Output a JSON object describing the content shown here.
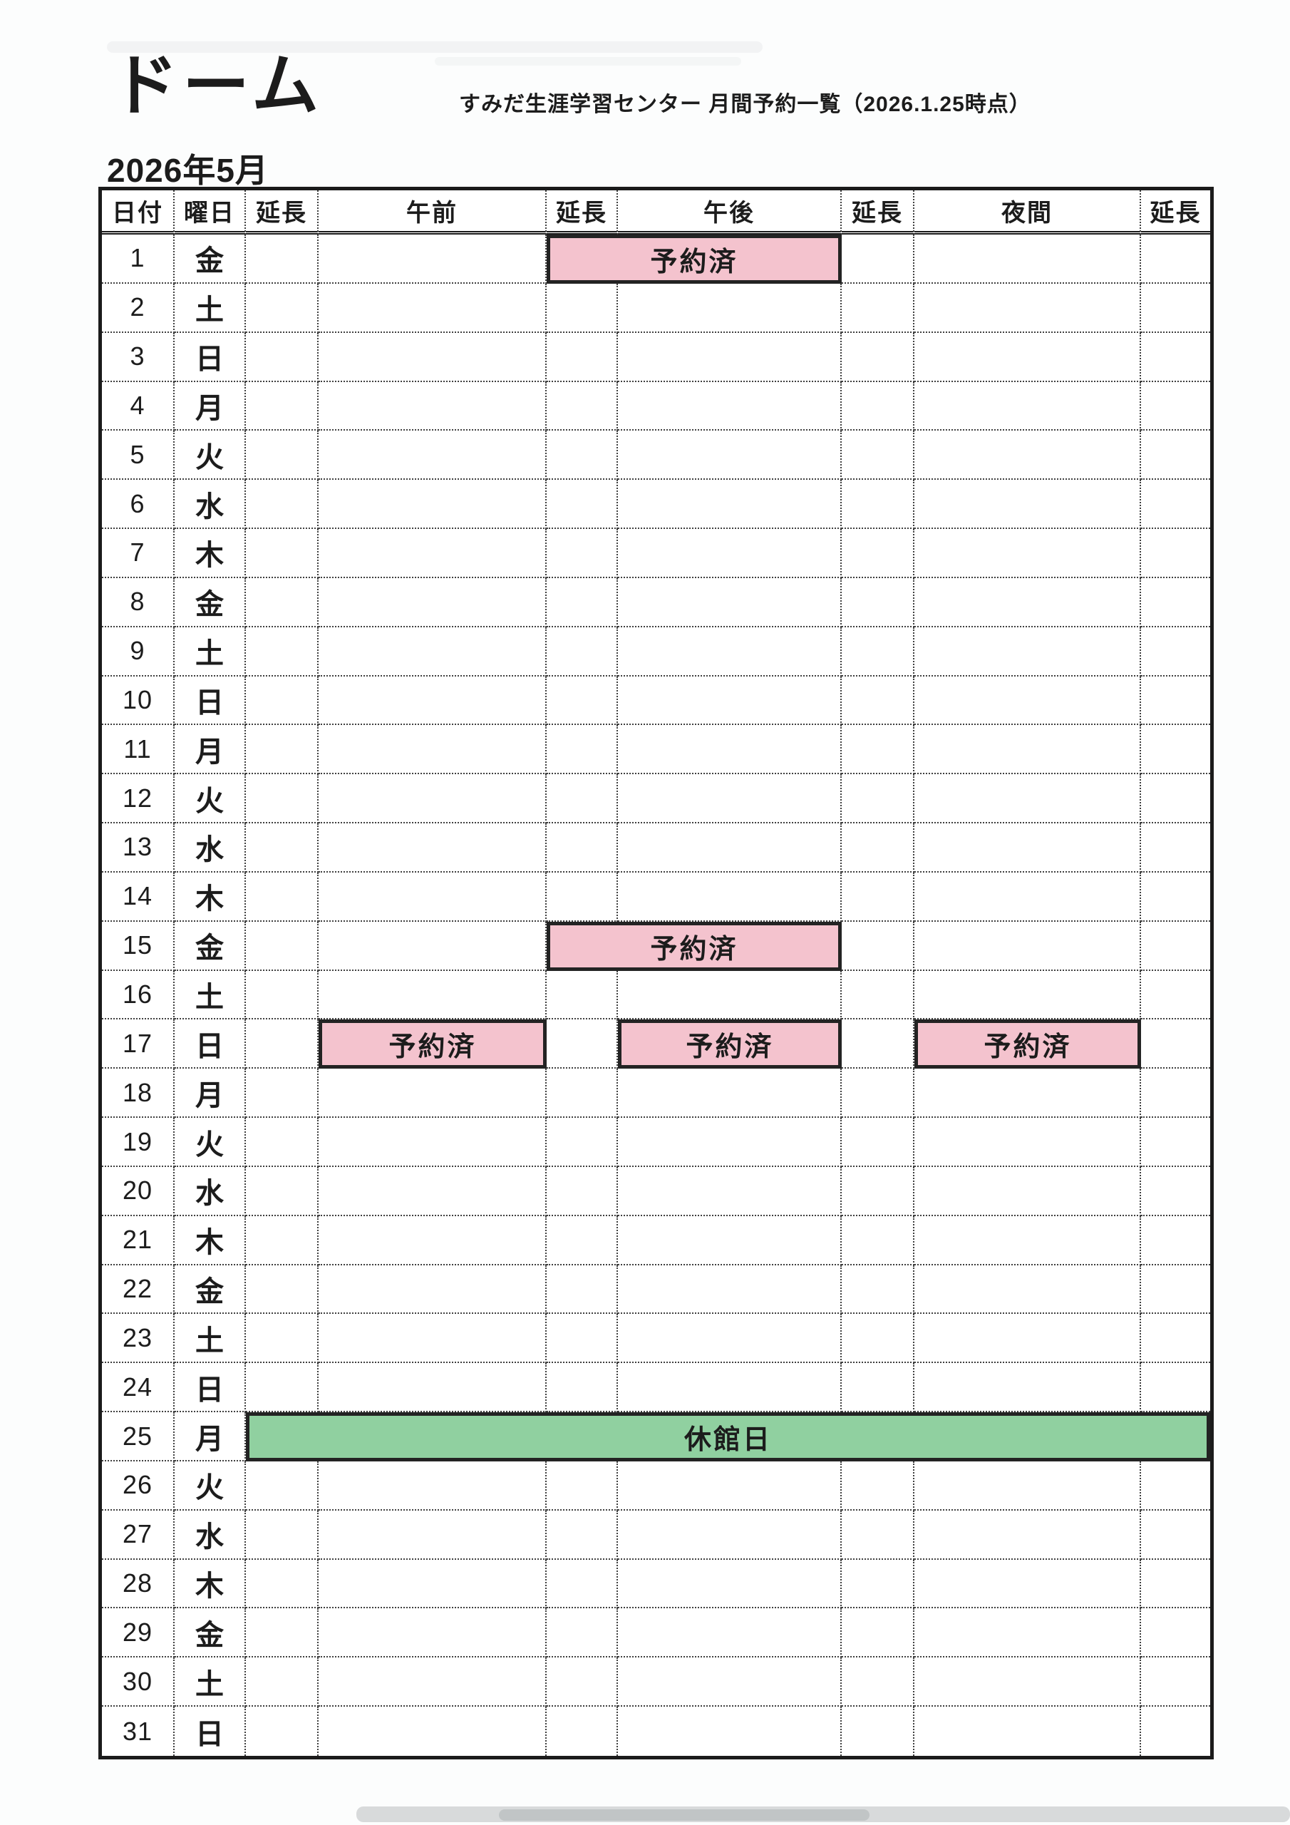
{
  "page": {
    "facility": "ドーム",
    "report_title": "すみだ生涯学習センター 月間予約一覧（2026.1.25時点）",
    "month": "2026年5月"
  },
  "table": {
    "headers": [
      "日付",
      "曜日",
      "延長",
      "午前",
      "延長",
      "午後",
      "延長",
      "夜間",
      "延長"
    ],
    "labels": {
      "reserved": "予約済",
      "closed": "休館日"
    },
    "colors": {
      "reserved_bg": "#f4c3ce",
      "closed_bg": "#90d0a0"
    },
    "rows": [
      {
        "date": "1",
        "day": "金",
        "blocks": [
          {
            "kind": "reserved",
            "start": 5,
            "span": 2
          }
        ]
      },
      {
        "date": "2",
        "day": "土",
        "blocks": []
      },
      {
        "date": "3",
        "day": "日",
        "blocks": []
      },
      {
        "date": "4",
        "day": "月",
        "blocks": []
      },
      {
        "date": "5",
        "day": "火",
        "blocks": []
      },
      {
        "date": "6",
        "day": "水",
        "blocks": []
      },
      {
        "date": "7",
        "day": "木",
        "blocks": []
      },
      {
        "date": "8",
        "day": "金",
        "blocks": []
      },
      {
        "date": "9",
        "day": "土",
        "blocks": []
      },
      {
        "date": "10",
        "day": "日",
        "blocks": []
      },
      {
        "date": "11",
        "day": "月",
        "blocks": []
      },
      {
        "date": "12",
        "day": "火",
        "blocks": []
      },
      {
        "date": "13",
        "day": "水",
        "blocks": []
      },
      {
        "date": "14",
        "day": "木",
        "blocks": []
      },
      {
        "date": "15",
        "day": "金",
        "blocks": [
          {
            "kind": "reserved",
            "start": 5,
            "span": 2
          }
        ]
      },
      {
        "date": "16",
        "day": "土",
        "blocks": []
      },
      {
        "date": "17",
        "day": "日",
        "blocks": [
          {
            "kind": "reserved",
            "start": 4,
            "span": 1
          },
          {
            "kind": "reserved",
            "start": 6,
            "span": 1
          },
          {
            "kind": "reserved",
            "start": 8,
            "span": 1
          }
        ]
      },
      {
        "date": "18",
        "day": "月",
        "blocks": []
      },
      {
        "date": "19",
        "day": "火",
        "blocks": []
      },
      {
        "date": "20",
        "day": "水",
        "blocks": []
      },
      {
        "date": "21",
        "day": "木",
        "blocks": []
      },
      {
        "date": "22",
        "day": "金",
        "blocks": []
      },
      {
        "date": "23",
        "day": "土",
        "blocks": []
      },
      {
        "date": "24",
        "day": "日",
        "blocks": []
      },
      {
        "date": "25",
        "day": "月",
        "blocks": [
          {
            "kind": "closed",
            "start": 3,
            "span": 7
          }
        ]
      },
      {
        "date": "26",
        "day": "火",
        "blocks": []
      },
      {
        "date": "27",
        "day": "水",
        "blocks": []
      },
      {
        "date": "28",
        "day": "木",
        "blocks": []
      },
      {
        "date": "29",
        "day": "金",
        "blocks": []
      },
      {
        "date": "30",
        "day": "土",
        "blocks": []
      },
      {
        "date": "31",
        "day": "日",
        "blocks": []
      }
    ]
  }
}
